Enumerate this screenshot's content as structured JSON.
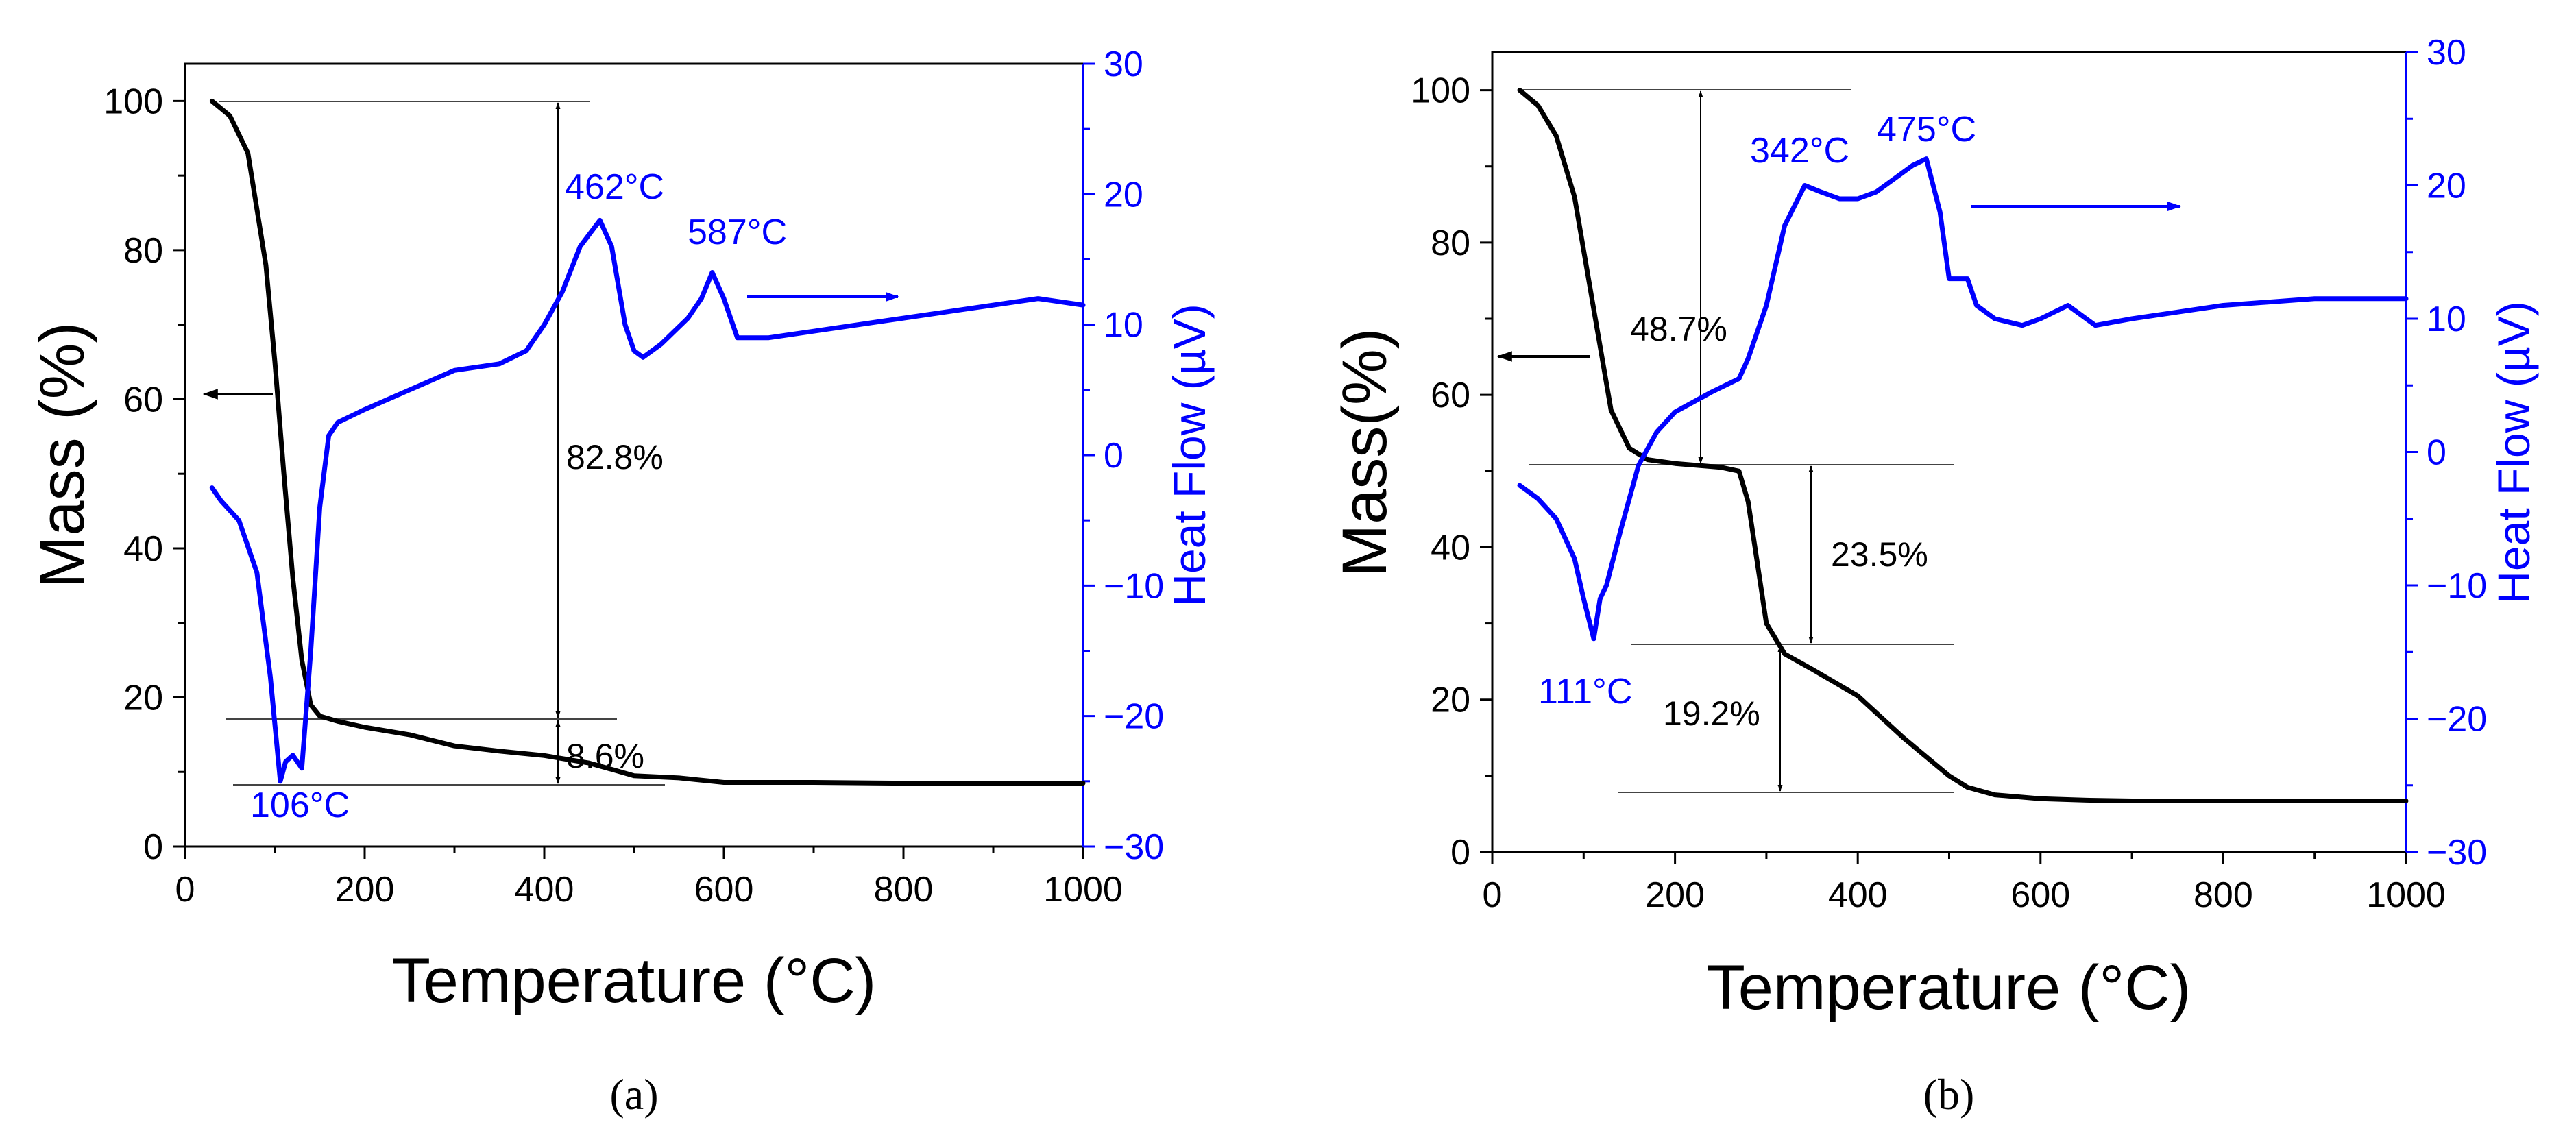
{
  "colors": {
    "mass": "#000000",
    "heat": "#0000ff",
    "guide": "#444444"
  },
  "chart_data": [
    {
      "type": "line",
      "panel_label": "(a)",
      "xlabel": "Temperature (°C)",
      "ylabel": "Mass (%)",
      "y2label": "Heat Flow (µV)",
      "xlim": [
        0,
        1000
      ],
      "ylim": [
        0,
        105
      ],
      "y2lim": [
        -30,
        30
      ],
      "x_ticks": [
        "0",
        "200",
        "400",
        "600",
        "800",
        "1000"
      ],
      "y_ticks": [
        "0",
        "20",
        "40",
        "60",
        "80",
        "100"
      ],
      "y2_ticks": [
        "−30",
        "−20",
        "−10",
        "0",
        "10",
        "20",
        "30"
      ],
      "series": [
        {
          "name": "Mass",
          "axis": "left",
          "color": "#000000",
          "x": [
            30,
            50,
            70,
            90,
            100,
            110,
            120,
            130,
            140,
            150,
            170,
            200,
            250,
            300,
            350,
            400,
            450,
            500,
            550,
            600,
            700,
            800,
            900,
            1000
          ],
          "y": [
            100,
            98,
            93,
            78,
            65,
            50,
            36,
            25,
            19,
            17.5,
            16.8,
            16,
            15,
            13.5,
            12.8,
            12.2,
            11.2,
            9.5,
            9.2,
            8.6,
            8.6,
            8.5,
            8.5,
            8.5
          ]
        },
        {
          "name": "Heat Flow",
          "axis": "right",
          "color": "#0000ff",
          "x": [
            30,
            40,
            60,
            80,
            95,
            106,
            112,
            120,
            130,
            140,
            150,
            160,
            170,
            200,
            250,
            300,
            350,
            380,
            400,
            420,
            440,
            462,
            475,
            490,
            500,
            510,
            530,
            560,
            575,
            587,
            600,
            615,
            650,
            700,
            800,
            900,
            950,
            1000
          ],
          "y": [
            -2.5,
            -3.5,
            -5,
            -9,
            -17,
            -25,
            -23.5,
            -23,
            -24,
            -15,
            -4,
            1.5,
            2.5,
            3.5,
            5,
            6.5,
            7,
            8,
            10,
            12.5,
            16,
            18,
            16,
            10,
            8,
            7.5,
            8.5,
            10.5,
            12,
            14,
            12,
            9,
            9,
            9.5,
            10.5,
            11.5,
            12,
            11.5
          ]
        }
      ],
      "annotations": {
        "pct_labels": [
          "82.8%",
          "8.6%"
        ],
        "temp_labels": [
          "462°C",
          "587°C",
          "106°C"
        ]
      }
    },
    {
      "type": "line",
      "panel_label": "(b)",
      "xlabel": "Temperature (°C)",
      "ylabel": "Mass(%)",
      "y2label": "Heat Flow (µV)",
      "xlim": [
        0,
        1000
      ],
      "ylim": [
        0,
        105
      ],
      "y2lim": [
        -30,
        30
      ],
      "x_ticks": [
        "0",
        "200",
        "400",
        "600",
        "800",
        "1000"
      ],
      "y_ticks": [
        "0",
        "20",
        "40",
        "60",
        "80",
        "100"
      ],
      "y2_ticks": [
        "−30",
        "−20",
        "−10",
        "0",
        "10",
        "20",
        "30"
      ],
      "series": [
        {
          "name": "Mass",
          "axis": "left",
          "color": "#000000",
          "x": [
            30,
            50,
            70,
            90,
            110,
            130,
            150,
            170,
            200,
            250,
            270,
            280,
            290,
            300,
            320,
            350,
            400,
            450,
            500,
            520,
            550,
            600,
            650,
            700,
            800,
            1000
          ],
          "y": [
            100,
            98,
            94,
            86,
            72,
            58,
            53,
            51.5,
            51,
            50.5,
            50,
            46,
            38,
            30,
            26,
            24,
            20.5,
            15,
            10,
            8.5,
            7.5,
            7,
            6.8,
            6.7,
            6.7,
            6.7
          ]
        },
        {
          "name": "Heat Flow",
          "axis": "right",
          "color": "#0000ff",
          "x": [
            30,
            50,
            70,
            90,
            100,
            111,
            118,
            125,
            140,
            160,
            180,
            200,
            240,
            270,
            280,
            300,
            320,
            342,
            360,
            380,
            400,
            420,
            440,
            460,
            475,
            490,
            500,
            520,
            530,
            550,
            580,
            600,
            630,
            660,
            700,
            800,
            900,
            1000
          ],
          "y": [
            -2.5,
            -3.5,
            -5,
            -8,
            -11,
            -14,
            -11,
            -10,
            -6,
            -1,
            1.5,
            3,
            4.5,
            5.5,
            7,
            11,
            17,
            20,
            19.5,
            19,
            19,
            19.5,
            20.5,
            21.5,
            22,
            18,
            13,
            13,
            11,
            10,
            9.5,
            10,
            11,
            9.5,
            10,
            11,
            11.5,
            11.5
          ]
        }
      ],
      "annotations": {
        "pct_labels": [
          "48.7%",
          "23.5%",
          "19.2%"
        ],
        "temp_labels": [
          "342°C",
          "475°C",
          "111°C"
        ]
      }
    }
  ]
}
